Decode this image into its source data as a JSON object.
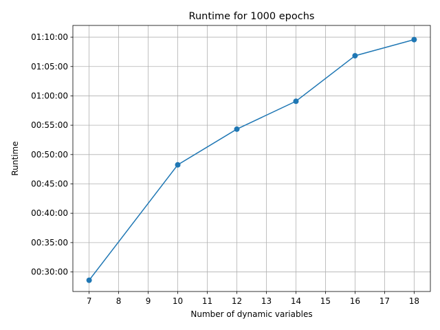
{
  "chart_data": {
    "type": "line",
    "title": "Runtime for 1000 epochs",
    "xlabel": "Number of dynamic variables",
    "ylabel": "Runtime",
    "x_ticks": [
      7,
      8,
      9,
      10,
      11,
      12,
      13,
      14,
      15,
      16,
      17,
      18
    ],
    "y_ticks": [
      "00:30:00",
      "00:35:00",
      "00:40:00",
      "00:45:00",
      "00:50:00",
      "00:55:00",
      "01:00:00",
      "01:05:00",
      "01:10:00"
    ],
    "xlim": [
      6.45,
      18.55
    ],
    "ylim": [
      "00:26:40",
      "01:12:00"
    ],
    "grid": true,
    "color": "#1f77b4",
    "series": [
      {
        "x": [
          7,
          10,
          12,
          14,
          16,
          18
        ],
        "y": [
          "00:28:35",
          "00:48:15",
          "00:54:20",
          "00:59:05",
          "01:06:50",
          "01:09:35"
        ]
      }
    ]
  }
}
